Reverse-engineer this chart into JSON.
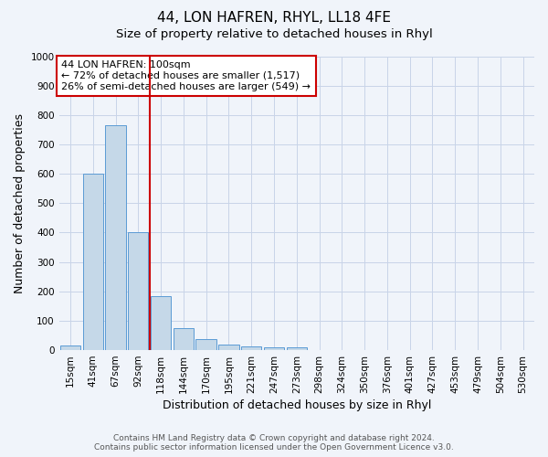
{
  "title": "44, LON HAFREN, RHYL, LL18 4FE",
  "subtitle": "Size of property relative to detached houses in Rhyl",
  "xlabel": "Distribution of detached houses by size in Rhyl",
  "ylabel": "Number of detached properties",
  "footnote1": "Contains HM Land Registry data © Crown copyright and database right 2024.",
  "footnote2": "Contains public sector information licensed under the Open Government Licence v3.0.",
  "annotation_line1": "44 LON HAFREN: 100sqm",
  "annotation_line2": "← 72% of detached houses are smaller (1,517)",
  "annotation_line3": "26% of semi-detached houses are larger (549) →",
  "bar_labels": [
    "15sqm",
    "41sqm",
    "67sqm",
    "92sqm",
    "118sqm",
    "144sqm",
    "170sqm",
    "195sqm",
    "221sqm",
    "247sqm",
    "273sqm",
    "298sqm",
    "324sqm",
    "350sqm",
    "376sqm",
    "401sqm",
    "427sqm",
    "453sqm",
    "479sqm",
    "504sqm",
    "530sqm"
  ],
  "bar_values": [
    15,
    600,
    765,
    400,
    185,
    75,
    38,
    20,
    12,
    10,
    8,
    0,
    0,
    0,
    0,
    0,
    0,
    0,
    0,
    0,
    0
  ],
  "bar_color": "#c5d8e8",
  "bar_edge_color": "#5b9bd5",
  "vline_x": 3.5,
  "vline_color": "#cc0000",
  "ylim": [
    0,
    1000
  ],
  "yticks": [
    0,
    100,
    200,
    300,
    400,
    500,
    600,
    700,
    800,
    900,
    1000
  ],
  "background_color": "#f0f4fa",
  "grid_color": "#c8d4e8",
  "title_fontsize": 11,
  "subtitle_fontsize": 9.5,
  "axis_label_fontsize": 9,
  "tick_fontsize": 7.5,
  "annotation_fontsize": 8,
  "footnote_fontsize": 6.5
}
